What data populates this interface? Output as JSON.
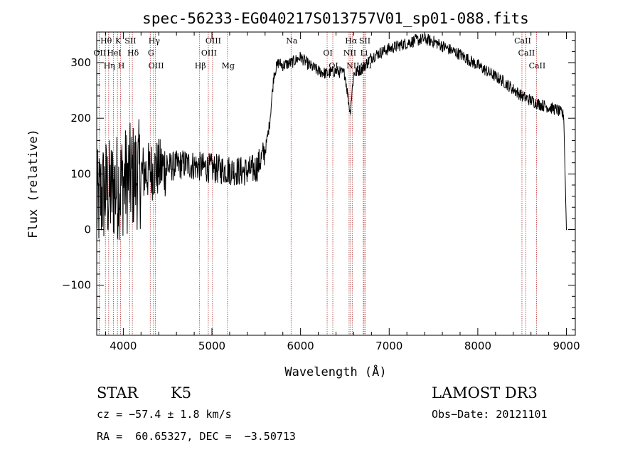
{
  "chart_data": {
    "type": "line",
    "title": "spec-56233-EG040217S013757V01_sp01-088.fits",
    "xlabel": "Wavelength (Å)",
    "ylabel": "Flux (relative)",
    "xlim": [
      3700,
      9100
    ],
    "ylim": [
      -190,
      355
    ],
    "x_ticks": [
      4000,
      5000,
      6000,
      7000,
      8000,
      9000
    ],
    "y_ticks": [
      -100,
      0,
      100,
      200,
      300
    ],
    "x_tick_labels": [
      "4000",
      "5000",
      "6000",
      "7000",
      "8000",
      "9000"
    ],
    "y_tick_labels": [
      "−100",
      "0",
      "100",
      "200",
      "300"
    ],
    "series": [
      {
        "name": "flux",
        "x": [
          3700,
          3750,
          3800,
          3850,
          3900,
          3950,
          4000,
          4100,
          4200,
          4300,
          4400,
          4500,
          4600,
          4700,
          4800,
          4900,
          5000,
          5100,
          5200,
          5300,
          5400,
          5500,
          5600,
          5650,
          5700,
          5750,
          5800,
          5900,
          6000,
          6100,
          6200,
          6300,
          6400,
          6500,
          6560,
          6600,
          6700,
          6800,
          6900,
          7000,
          7100,
          7200,
          7300,
          7400,
          7500,
          7600,
          7700,
          7800,
          7900,
          8000,
          8100,
          8200,
          8300,
          8400,
          8500,
          8600,
          8700,
          8800,
          8900,
          8970,
          9000
        ],
        "y": [
          40,
          60,
          70,
          65,
          75,
          80,
          85,
          95,
          100,
          105,
          110,
          112,
          115,
          118,
          115,
          112,
          110,
          108,
          107,
          105,
          105,
          110,
          140,
          190,
          280,
          300,
          295,
          300,
          310,
          295,
          285,
          280,
          285,
          280,
          210,
          280,
          290,
          310,
          318,
          325,
          330,
          335,
          340,
          342,
          338,
          330,
          322,
          315,
          305,
          295,
          285,
          275,
          265,
          252,
          240,
          232,
          225,
          220,
          215,
          205,
          0
        ]
      }
    ],
    "line_markers": [
      {
        "label": "Hθ",
        "wavelength": 3798
      },
      {
        "label": "OII",
        "wavelength": 3727
      },
      {
        "label": "Hη",
        "wavelength": 3835
      },
      {
        "label": "K",
        "wavelength": 3934
      },
      {
        "label": "HeI",
        "wavelength": 3889
      },
      {
        "label": "H",
        "wavelength": 3969
      },
      {
        "label": "SII",
        "wavelength": 4072
      },
      {
        "label": "Hδ",
        "wavelength": 4102
      },
      {
        "label": "OIII",
        "wavelength": 4363
      },
      {
        "label": "Hγ",
        "wavelength": 4341
      },
      {
        "label": "G",
        "wavelength": 4304
      },
      {
        "label": "Hβ",
        "wavelength": 4861
      },
      {
        "label": "OIII",
        "wavelength": 5007
      },
      {
        "label": "OIII",
        "wavelength": 4959
      },
      {
        "label": "Mg",
        "wavelength": 5175
      },
      {
        "label": "Na",
        "wavelength": 5893
      },
      {
        "label": "OI",
        "wavelength": 6300
      },
      {
        "label": "OI",
        "wavelength": 6364
      },
      {
        "label": "Hα",
        "wavelength": 6563
      },
      {
        "label": "NII",
        "wavelength": 6548
      },
      {
        "label": "NII",
        "wavelength": 6583
      },
      {
        "label": "SII",
        "wavelength": 6717
      },
      {
        "label": "Li",
        "wavelength": 6708
      },
      {
        "label": "SII",
        "wavelength": 6731
      },
      {
        "label": "CaII",
        "wavelength": 8498
      },
      {
        "label": "CaII",
        "wavelength": 8542
      },
      {
        "label": "CaII",
        "wavelength": 8662
      }
    ],
    "grid": false
  },
  "info": {
    "object_type": "STAR",
    "subclass": "K5",
    "survey": "LAMOST DR3",
    "velocity": "cz = −57.4 ± 1.8 km/s",
    "obs_date": "Obs−Date: 20121101",
    "coords": "RA =  60.65327, DEC =  −3.50713"
  },
  "colors": {
    "foreground": "#000000",
    "marker_line": "#b03030",
    "background": "#ffffff"
  }
}
